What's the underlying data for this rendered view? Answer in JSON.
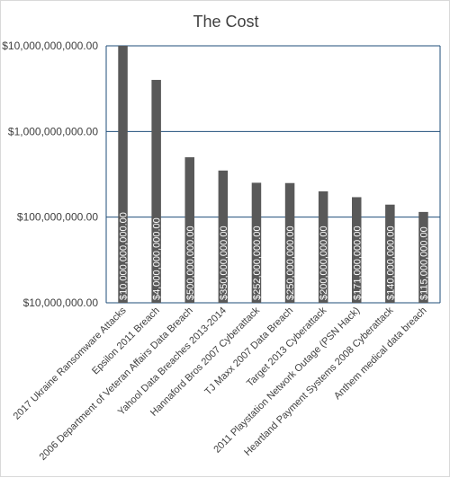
{
  "chart_data": {
    "type": "bar",
    "title": "The Cost",
    "xlabel": "",
    "ylabel": "",
    "y_scale": "log",
    "ylim": [
      10000000,
      10000000000
    ],
    "y_ticks": [
      {
        "value": 10000000000,
        "label": "$10,000,000,000.00"
      },
      {
        "value": 1000000000,
        "label": "$1,000,000,000.00"
      },
      {
        "value": 100000000,
        "label": "$100,000,000.00"
      },
      {
        "value": 10000000,
        "label": "$10,000,000.00"
      }
    ],
    "grid": true,
    "categories": [
      "2017 Ukraine Ransomware Attacks",
      "Epsilon 2011 Breach",
      "2006 Department of Veteran Affairs Data Breach",
      "Yahool Data Breaches 2013-2014",
      "Hannaford Bros 2007 Cyberattack",
      "TJ Maxx 2007 Data Breach",
      "Target 2013 Cyberattack",
      "2011 Playstation Network Outage (PSN Hack)",
      "Heartland Payment Systems 2008 Cyberattack",
      "Anthem medical data breach"
    ],
    "values": [
      10000000000,
      4000000000,
      500000000,
      350000000,
      252000000,
      250000000,
      200000000,
      171000000,
      140000000,
      115000000
    ],
    "data_labels": [
      "$10,000,000,000.00",
      "$4,000,000,000.00",
      "$500,000,000.00",
      "$350,000,000.00",
      "$252,000,000.00",
      "$250,000,000.00",
      "$200,000,000.00",
      "$171,000,000.00",
      "$140,000,000.00",
      "$115,000,000.00"
    ],
    "colors": {
      "bar": "#595959",
      "grid": "#1f4e79",
      "axis": "#1f4e79",
      "text": "#404040"
    }
  }
}
